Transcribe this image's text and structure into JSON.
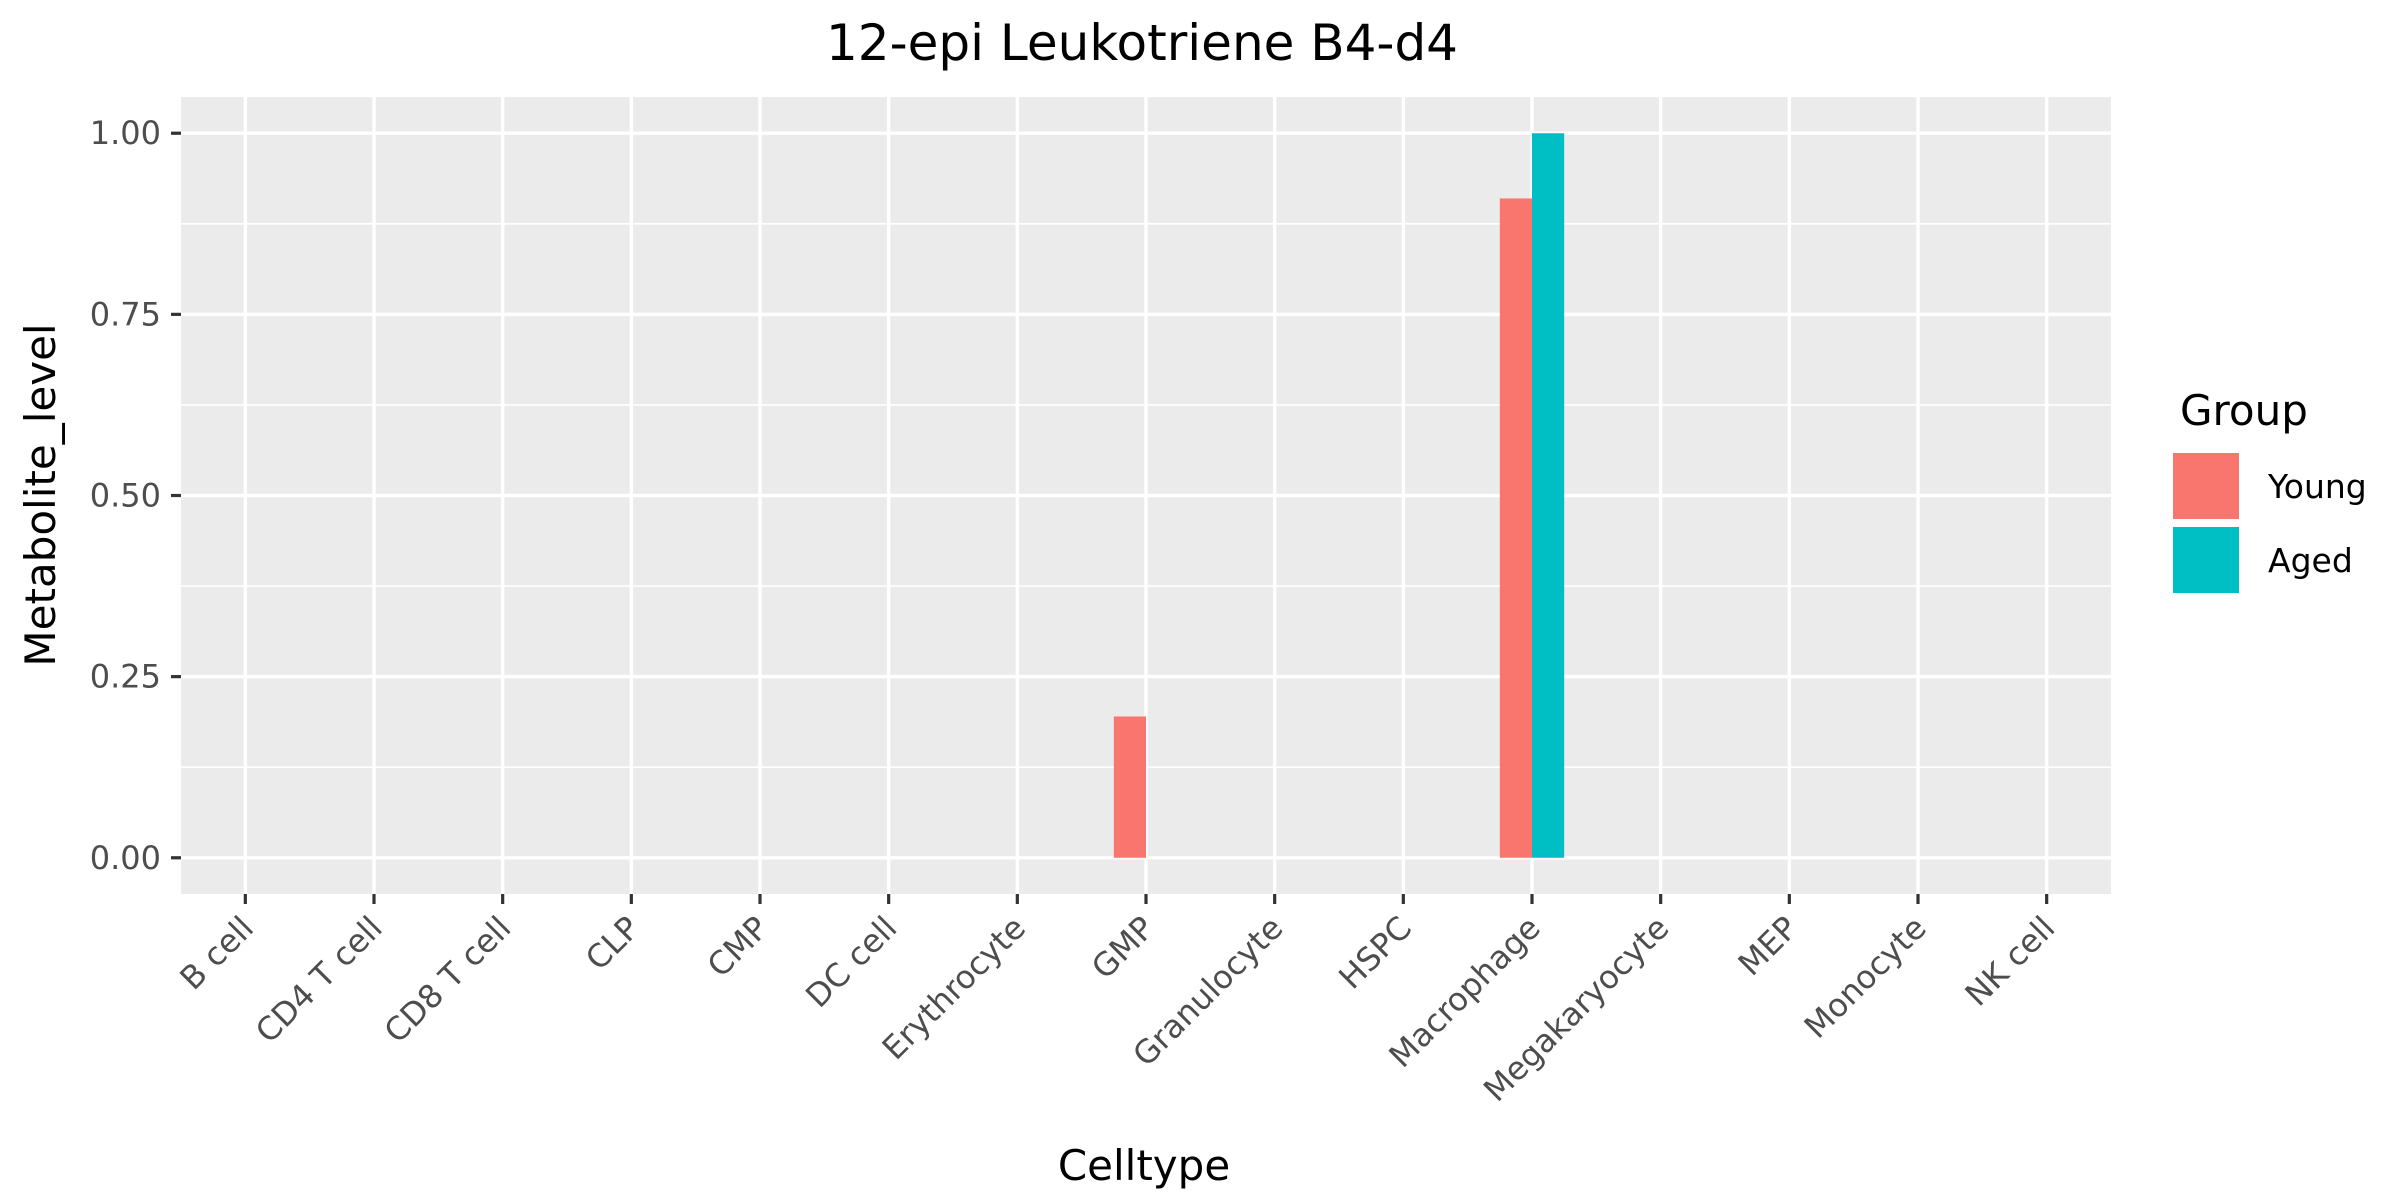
{
  "chart_data": {
    "type": "bar",
    "title": "12-epi Leukotriene B4-d4",
    "xlabel": "Celltype",
    "ylabel": "Metabolite_level",
    "categories": [
      "B cell",
      "CD4 T cell",
      "CD8 T cell",
      "CLP",
      "CMP",
      "DC cell",
      "Erythrocyte",
      "GMP",
      "Granulocyte",
      "HSPC",
      "Macrophage",
      "Megakaryocyte",
      "MEP",
      "Monocyte",
      "NK cell"
    ],
    "series": [
      {
        "name": "Young",
        "color": "#F8766D",
        "values": [
          null,
          null,
          null,
          null,
          null,
          null,
          null,
          0.195,
          null,
          null,
          0.91,
          null,
          null,
          null,
          null
        ]
      },
      {
        "name": "Aged",
        "color": "#00BFC4",
        "values": [
          null,
          null,
          null,
          null,
          null,
          null,
          null,
          null,
          null,
          null,
          1.0,
          null,
          null,
          null,
          null
        ]
      }
    ],
    "ylim": [
      -0.05,
      1.05
    ],
    "yticks": [
      0.0,
      0.25,
      0.5,
      0.75,
      1.0
    ],
    "ytick_labels": [
      "0.00",
      "0.25",
      "0.50",
      "0.75",
      "1.00"
    ],
    "legend": {
      "title": "Group",
      "placement": "right"
    },
    "grid": true,
    "panel_background": "#EBEBEB"
  }
}
